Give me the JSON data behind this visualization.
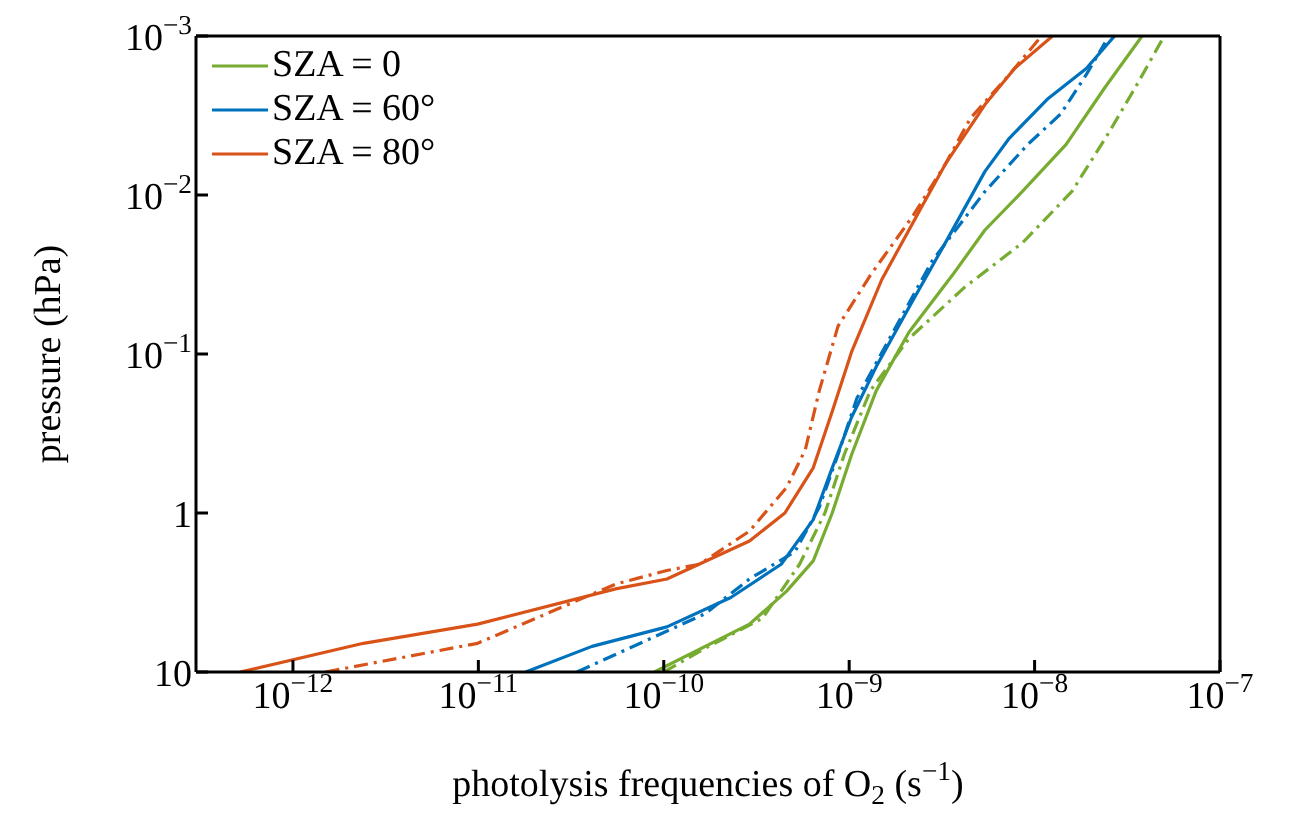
{
  "chart_data": {
    "type": "line",
    "xlabel": "photolysis frequencies of O$_{2}$ (s$^{−1}$)",
    "ylabel": "pressure (hPa)",
    "log": "xy",
    "legend": "top left",
    "marker": "none",
    "xlim": [
      3e-13,
      1e-07
    ],
    "ylim": [
      10,
      0.001
    ],
    "xticks": [
      {
        "value": 1e-12,
        "label": "10$^{−12}$"
      },
      {
        "value": 1e-11,
        "label": "10$^{−11}$"
      },
      {
        "value": 1e-10,
        "label": "10$^{−10}$"
      },
      {
        "value": 1e-09,
        "label": "10$^{−9}$"
      },
      {
        "value": 1e-08,
        "label": "10$^{−8}$"
      },
      {
        "value": 1e-07,
        "label": "10$^{−7}$"
      }
    ],
    "yticks": [
      10,
      1,
      {
        "value": 0.1,
        "label": "10$^{−1}$"
      },
      {
        "value": 0.01,
        "label": "10$^{−2}$"
      },
      {
        "value": 0.001,
        "label": "10$^{−3}$"
      }
    ],
    "series": [
      {
        "name": "SZA = 0",
        "color": "#77ac30",
        "line_style": "solid",
        "x": [
          8.9e-11,
          2.9e-10,
          4.6e-10,
          6.4e-10,
          8.1e-10,
          1.03e-09,
          1.4e-09,
          2.1e-09,
          3.6e-09,
          5.4e-09,
          8.6e-09,
          1.48e-08,
          2.4e-08,
          3.8e-08
        ],
        "values": [
          10,
          5.0,
          3.1,
          2.0,
          1.0,
          0.43,
          0.17,
          0.073,
          0.032,
          0.0166,
          0.0095,
          0.0048,
          0.0021,
          0.001
        ]
      },
      {
        "name": "SZA = 60°",
        "color": "#0072bd",
        "line_style": "solid",
        "x": [
          1.8e-11,
          4.1e-11,
          1.04e-10,
          2.3e-10,
          4.3e-10,
          6.4e-10,
          8.1e-10,
          1.03e-09,
          1.4e-09,
          2.1e-09,
          3.3e-09,
          5.4e-09,
          7.3e-09,
          1.17e-08,
          1.9e-08,
          2.7e-08
        ],
        "values": [
          10,
          6.9,
          5.2,
          3.4,
          2.1,
          1.1,
          0.52,
          0.25,
          0.12,
          0.051,
          0.02,
          0.0071,
          0.0044,
          0.0025,
          0.0016,
          0.001
        ]
      },
      {
        "name": "SZA = 80°",
        "color": "#d95319",
        "line_style": "solid",
        "x": [
          5.2e-13,
          2.4e-12,
          9.9e-12,
          5.5e-11,
          1.04e-10,
          2.9e-10,
          4.5e-10,
          6.4e-10,
          8.1e-10,
          1.03e-09,
          1.5e-09,
          2.4e-09,
          3.3e-09,
          5.4e-09,
          7.8e-09,
          1.25e-08
        ],
        "values": [
          10,
          6.6,
          5.0,
          3.0,
          2.6,
          1.5,
          1.0,
          0.52,
          0.23,
          0.097,
          0.034,
          0.0125,
          0.0064,
          0.0027,
          0.0016,
          0.001
        ]
      },
      {
        "color": "#77ac30",
        "line_style": "dashed",
        "x": [
          1e-10,
          1.67e-10,
          3.4e-10,
          5.4e-10,
          7.4e-10,
          9.4e-10,
          1.3e-09,
          2.1e-09,
          4.2e-09,
          8.6e-09,
          1.59e-08,
          2.5e-08,
          3.5e-08,
          5e-08
        ],
        "values": [
          10,
          7.1,
          4.6,
          2.1,
          1.0,
          0.43,
          0.17,
          0.08,
          0.038,
          0.02,
          0.0095,
          0.0041,
          0.0021,
          0.001
        ]
      },
      {
        "color": "#0072bd",
        "line_style": "dashed",
        "x": [
          3.4e-11,
          1.67e-10,
          2.9e-10,
          5.1e-10,
          6.9e-10,
          8.7e-10,
          1.1e-09,
          1.65e-09,
          2.8e-09,
          5.4e-09,
          9.2e-09,
          1.38e-08,
          1.9e-08,
          2.4e-08
        ],
        "values": [
          10,
          4.3,
          2.6,
          1.75,
          0.92,
          0.43,
          0.19,
          0.08,
          0.026,
          0.0095,
          0.0048,
          0.0031,
          0.00175,
          0.0011
        ]
      },
      {
        "color": "#d95319",
        "line_style": "dashed",
        "x": [
          1.5e-12,
          9.9e-12,
          5.5e-11,
          1.04e-10,
          1.56e-10,
          2.9e-10,
          4.6e-10,
          5.8e-10,
          6.9e-10,
          8.7e-10,
          1.3e-09,
          2.2e-09,
          3.3e-09,
          4.5e-09,
          7.3e-09,
          1.09e-08
        ],
        "values": [
          10,
          6.6,
          2.8,
          2.3,
          2.1,
          1.3,
          0.69,
          0.4,
          0.17,
          0.067,
          0.032,
          0.0136,
          0.0064,
          0.0033,
          0.00175,
          0.001
        ]
      }
    ]
  }
}
